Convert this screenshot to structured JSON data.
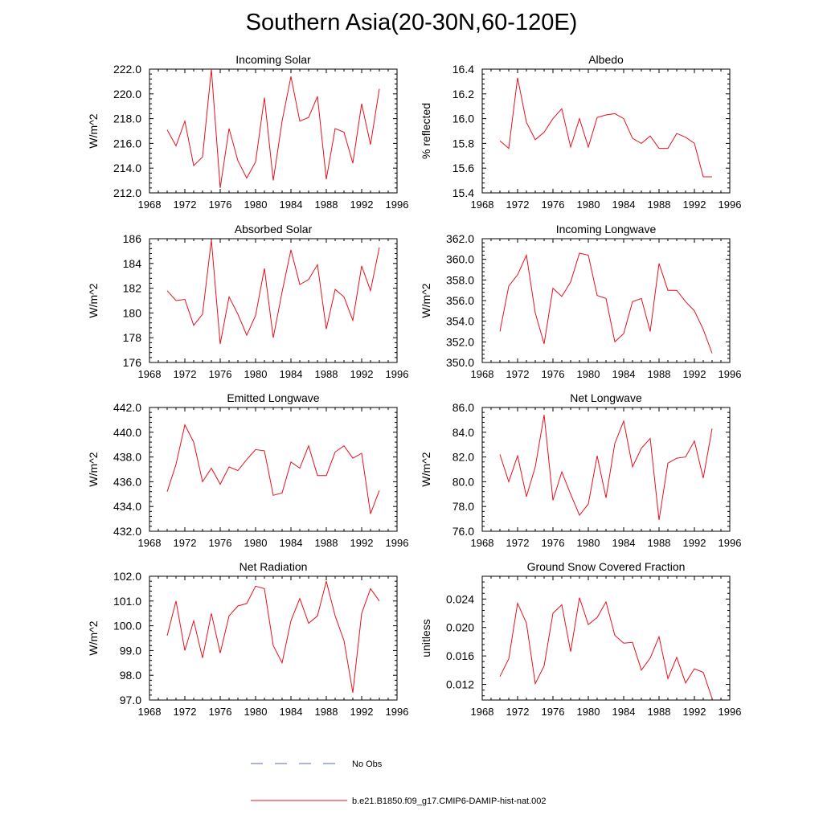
{
  "title": "Southern Asia(20-30N,60-120E)",
  "colors": {
    "model": "#e8101c",
    "obs": "#5a64d2",
    "axis": "#000000"
  },
  "legend": {
    "obs_label": "No Obs",
    "model_label": "b.e21.B1850.f09_g17.CMIP6-DAMIP-hist-nat.002"
  },
  "chart_data": [
    {
      "type": "line",
      "title": "Incoming Solar",
      "ylabel": "W/m^2",
      "xlim": [
        1968,
        1996
      ],
      "xticks": [
        "1968",
        "1972",
        "1976",
        "1980",
        "1984",
        "1988",
        "1992",
        "1996"
      ],
      "ylim": [
        212.0,
        222.0
      ],
      "yticks": [
        "212.0",
        "214.0",
        "216.0",
        "218.0",
        "220.0",
        "222.0"
      ],
      "x": [
        1970,
        1971,
        1972,
        1973,
        1974,
        1975,
        1976,
        1977,
        1978,
        1979,
        1980,
        1981,
        1982,
        1983,
        1984,
        1985,
        1986,
        1987,
        1988,
        1989,
        1990,
        1991,
        1992,
        1993,
        1994
      ],
      "series": [
        {
          "name": "b.e21.B1850.f09_g17.CMIP6-DAMIP-hist-nat.002",
          "values": [
            217.1,
            215.8,
            217.8,
            214.2,
            214.9,
            222.0,
            212.4,
            217.2,
            214.6,
            213.2,
            214.5,
            219.7,
            213.0,
            217.8,
            221.4,
            217.8,
            218.1,
            219.8,
            213.1,
            217.2,
            216.9,
            214.4,
            219.2,
            215.9,
            220.4
          ]
        }
      ]
    },
    {
      "type": "line",
      "title": "Albedo",
      "ylabel": "% reflected",
      "xlim": [
        1968,
        1996
      ],
      "xticks": [
        "1968",
        "1972",
        "1976",
        "1980",
        "1984",
        "1988",
        "1992",
        "1996"
      ],
      "ylim": [
        15.4,
        16.4
      ],
      "yticks": [
        "15.4",
        "15.6",
        "15.8",
        "16.0",
        "16.2",
        "16.4"
      ],
      "x": [
        1970,
        1971,
        1972,
        1973,
        1974,
        1975,
        1976,
        1977,
        1978,
        1979,
        1980,
        1981,
        1982,
        1983,
        1984,
        1985,
        1986,
        1987,
        1988,
        1989,
        1990,
        1991,
        1992,
        1993,
        1994
      ],
      "series": [
        {
          "name": "b.e21.B1850.f09_g17.CMIP6-DAMIP-hist-nat.002",
          "values": [
            15.82,
            15.76,
            16.33,
            15.97,
            15.83,
            15.89,
            16.0,
            16.08,
            15.77,
            16.0,
            15.77,
            16.01,
            16.03,
            16.04,
            16.0,
            15.84,
            15.8,
            15.86,
            15.76,
            15.76,
            15.88,
            15.85,
            15.8,
            15.53,
            15.53
          ]
        }
      ]
    },
    {
      "type": "line",
      "title": "Absorbed Solar",
      "ylabel": "W/m^2",
      "xlim": [
        1968,
        1996
      ],
      "xticks": [
        "1968",
        "1972",
        "1976",
        "1980",
        "1984",
        "1988",
        "1992",
        "1996"
      ],
      "ylim": [
        176,
        186
      ],
      "yticks": [
        "176",
        "178",
        "180",
        "182",
        "184",
        "186"
      ],
      "x": [
        1970,
        1971,
        1972,
        1973,
        1974,
        1975,
        1976,
        1977,
        1978,
        1979,
        1980,
        1981,
        1982,
        1983,
        1984,
        1985,
        1986,
        1987,
        1988,
        1989,
        1990,
        1991,
        1992,
        1993,
        1994
      ],
      "series": [
        {
          "name": "b.e21.B1850.f09_g17.CMIP6-DAMIP-hist-nat.002",
          "values": [
            181.8,
            181.0,
            181.1,
            179.0,
            179.9,
            185.9,
            177.5,
            181.3,
            179.9,
            178.2,
            179.8,
            183.6,
            178.0,
            181.7,
            185.1,
            182.3,
            182.7,
            183.9,
            178.7,
            181.9,
            181.3,
            179.4,
            183.8,
            181.8,
            185.3
          ]
        }
      ]
    },
    {
      "type": "line",
      "title": "Incoming Longwave",
      "ylabel": "W/m^2",
      "xlim": [
        1968,
        1996
      ],
      "xticks": [
        "1968",
        "1972",
        "1976",
        "1980",
        "1984",
        "1988",
        "1992",
        "1996"
      ],
      "ylim": [
        350.0,
        362.0
      ],
      "yticks": [
        "350.0",
        "352.0",
        "354.0",
        "356.0",
        "358.0",
        "360.0",
        "362.0"
      ],
      "x": [
        1970,
        1971,
        1972,
        1973,
        1974,
        1975,
        1976,
        1977,
        1978,
        1979,
        1980,
        1981,
        1982,
        1983,
        1984,
        1985,
        1986,
        1987,
        1988,
        1989,
        1990,
        1991,
        1992,
        1993,
        1994
      ],
      "series": [
        {
          "name": "b.e21.B1850.f09_g17.CMIP6-DAMIP-hist-nat.002",
          "values": [
            353.0,
            357.4,
            358.5,
            360.4,
            354.8,
            351.8,
            357.2,
            356.4,
            357.8,
            360.6,
            360.4,
            356.5,
            356.2,
            352.0,
            352.8,
            355.9,
            356.2,
            353.0,
            359.6,
            357.0,
            357.0,
            355.9,
            355.0,
            353.2,
            350.9
          ]
        }
      ]
    },
    {
      "type": "line",
      "title": "Emitted Longwave",
      "ylabel": "W/m^2",
      "xlim": [
        1968,
        1996
      ],
      "xticks": [
        "1968",
        "1972",
        "1976",
        "1980",
        "1984",
        "1988",
        "1992",
        "1996"
      ],
      "ylim": [
        432.0,
        442.0
      ],
      "yticks": [
        "432.0",
        "434.0",
        "436.0",
        "438.0",
        "440.0",
        "442.0"
      ],
      "x": [
        1970,
        1971,
        1972,
        1973,
        1974,
        1975,
        1976,
        1977,
        1978,
        1979,
        1980,
        1981,
        1982,
        1983,
        1984,
        1985,
        1986,
        1987,
        1988,
        1989,
        1990,
        1991,
        1992,
        1993,
        1994
      ],
      "series": [
        {
          "name": "b.e21.B1850.f09_g17.CMIP6-DAMIP-hist-nat.002",
          "values": [
            435.2,
            437.4,
            440.6,
            439.2,
            436.0,
            437.1,
            435.8,
            437.2,
            436.9,
            437.8,
            438.6,
            438.5,
            434.9,
            435.1,
            437.6,
            437.1,
            438.9,
            436.5,
            436.5,
            438.4,
            438.9,
            437.9,
            438.3,
            433.4,
            435.3
          ]
        }
      ]
    },
    {
      "type": "line",
      "title": "Net Longwave",
      "ylabel": "W/m^2",
      "xlim": [
        1968,
        1996
      ],
      "xticks": [
        "1968",
        "1972",
        "1976",
        "1980",
        "1984",
        "1988",
        "1992",
        "1996"
      ],
      "ylim": [
        76.0,
        86.0
      ],
      "yticks": [
        "76.0",
        "78.0",
        "80.0",
        "82.0",
        "84.0",
        "86.0"
      ],
      "x": [
        1970,
        1971,
        1972,
        1973,
        1974,
        1975,
        1976,
        1977,
        1978,
        1979,
        1980,
        1981,
        1982,
        1983,
        1984,
        1985,
        1986,
        1987,
        1988,
        1989,
        1990,
        1991,
        1992,
        1993,
        1994
      ],
      "series": [
        {
          "name": "b.e21.B1850.f09_g17.CMIP6-DAMIP-hist-nat.002",
          "values": [
            82.2,
            80.0,
            82.1,
            78.8,
            81.2,
            85.4,
            78.5,
            80.8,
            79.0,
            77.3,
            78.2,
            82.1,
            78.7,
            83.1,
            84.9,
            81.2,
            82.7,
            83.5,
            76.9,
            81.5,
            81.9,
            82.0,
            83.3,
            80.3,
            84.3
          ]
        }
      ]
    },
    {
      "type": "line",
      "title": "Net Radiation",
      "ylabel": "W/m^2",
      "xlim": [
        1968,
        1996
      ],
      "xticks": [
        "1968",
        "1972",
        "1976",
        "1980",
        "1984",
        "1988",
        "1992",
        "1996"
      ],
      "ylim": [
        97.0,
        102.0
      ],
      "yticks": [
        "97.0",
        "98.0",
        "99.0",
        "100.0",
        "101.0",
        "102.0"
      ],
      "x": [
        1970,
        1971,
        1972,
        1973,
        1974,
        1975,
        1976,
        1977,
        1978,
        1979,
        1980,
        1981,
        1982,
        1983,
        1984,
        1985,
        1986,
        1987,
        1988,
        1989,
        1990,
        1991,
        1992,
        1993,
        1994
      ],
      "series": [
        {
          "name": "b.e21.B1850.f09_g17.CMIP6-DAMIP-hist-nat.002",
          "values": [
            99.6,
            101.0,
            99.0,
            100.2,
            98.7,
            100.5,
            98.9,
            100.4,
            100.8,
            100.9,
            101.6,
            101.5,
            99.2,
            98.5,
            100.2,
            101.1,
            100.1,
            100.4,
            101.8,
            100.4,
            99.4,
            97.3,
            100.5,
            101.5,
            101.0
          ]
        }
      ]
    },
    {
      "type": "line",
      "title": "Ground Snow Covered Fraction",
      "ylabel": "unitless",
      "xlim": [
        1968,
        1996
      ],
      "xticks": [
        "1968",
        "1972",
        "1976",
        "1980",
        "1984",
        "1988",
        "1992",
        "1996"
      ],
      "ylim": [
        0.0098,
        0.0272
      ],
      "yticks": [
        "0.012",
        "0.016",
        "0.020",
        "0.024"
      ],
      "ytick_values": [
        0.012,
        0.016,
        0.02,
        0.024
      ],
      "x": [
        1970,
        1971,
        1972,
        1973,
        1974,
        1975,
        1976,
        1977,
        1978,
        1979,
        1980,
        1981,
        1982,
        1983,
        1984,
        1985,
        1986,
        1987,
        1988,
        1989,
        1990,
        1991,
        1992,
        1993,
        1994
      ],
      "series": [
        {
          "name": "b.e21.B1850.f09_g17.CMIP6-DAMIP-hist-nat.002",
          "values": [
            0.0131,
            0.0156,
            0.0234,
            0.0206,
            0.0121,
            0.0146,
            0.022,
            0.0232,
            0.0166,
            0.0242,
            0.0204,
            0.0214,
            0.0236,
            0.0189,
            0.0178,
            0.0179,
            0.014,
            0.0157,
            0.0187,
            0.0128,
            0.0158,
            0.0122,
            0.0142,
            0.0137,
            0.01
          ]
        }
      ]
    }
  ]
}
